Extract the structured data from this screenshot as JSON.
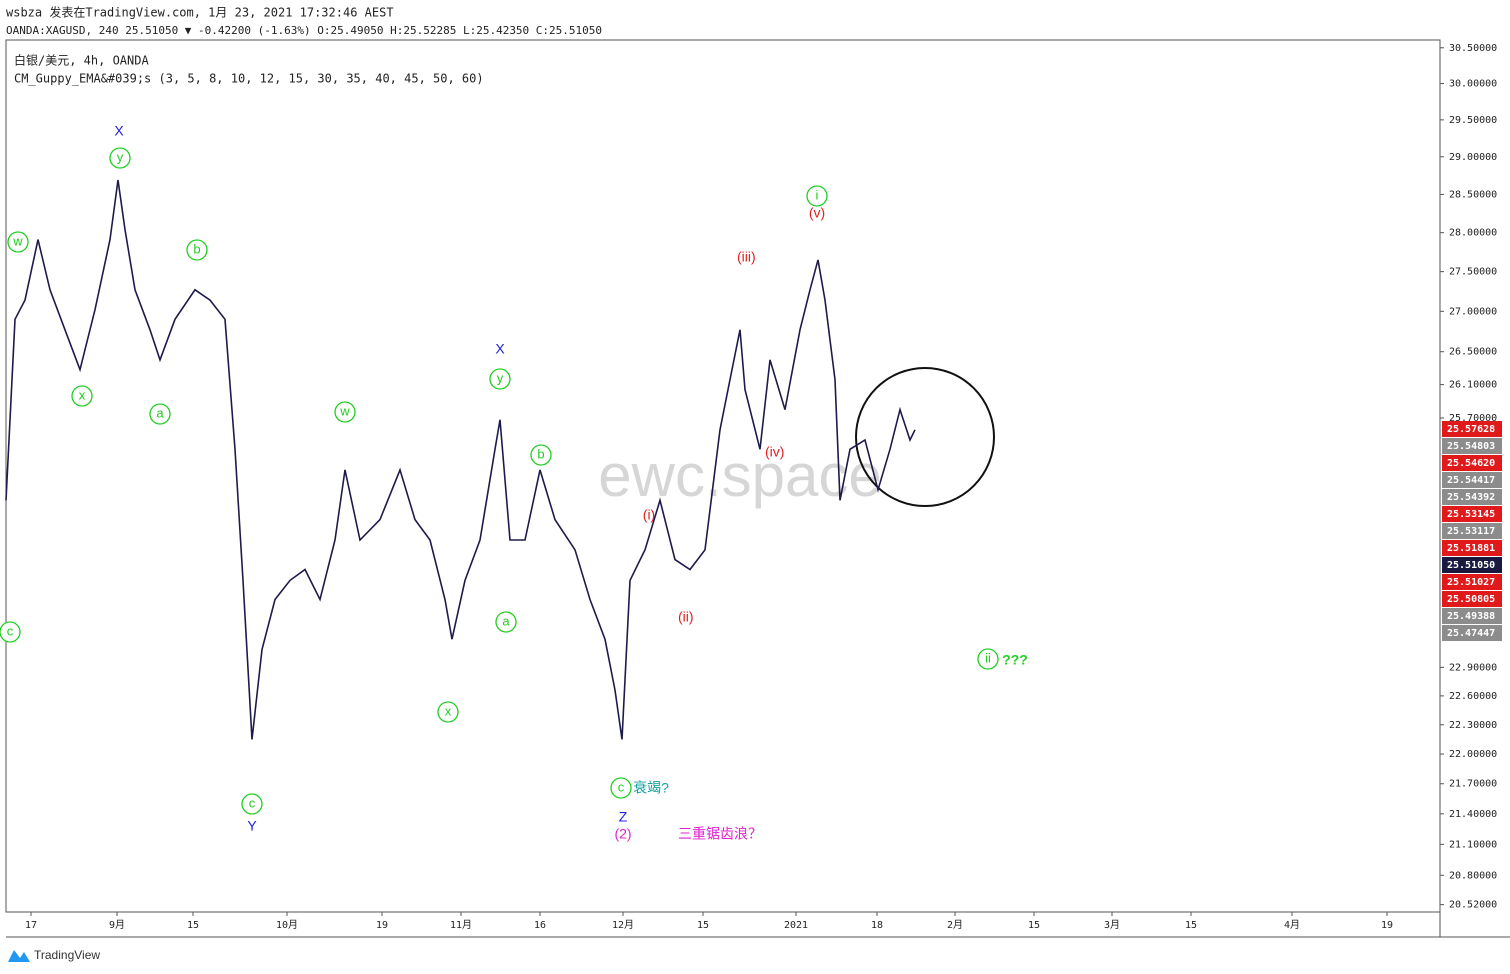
{
  "header": {
    "author_line": "wsbza 发表在TradingView.com, 1月 23, 2021 17:32:46 AEST",
    "symbol_line": "OANDA:XAGUSD, 240 25.51050 ▼ -0.42200 (-1.63%) O:25.49050 H:25.52285 L:25.42350 C:25.51050",
    "instrument": "白银/美元, 4h, OANDA",
    "indicator": "CM_Guppy_EMA&#039;s (3, 5, 8, 10, 12, 15, 30, 35, 40, 45, 50, 60)"
  },
  "watermark": "ewc.space",
  "footer": "TradingView",
  "chart_data": {
    "type": "line",
    "log_scale": true,
    "color": "#1e1b4b",
    "x": [
      0,
      9,
      19,
      32,
      44,
      59,
      74,
      89,
      104,
      112,
      119,
      129,
      144,
      154,
      169,
      189,
      204,
      219,
      229,
      237,
      246,
      256,
      269,
      284,
      299,
      314,
      329,
      339,
      354,
      374,
      394,
      409,
      424,
      439,
      446,
      459,
      474,
      489,
      494,
      504,
      519,
      534,
      549,
      569,
      584,
      599,
      609,
      616,
      624,
      639,
      654,
      669,
      684,
      699,
      714,
      724,
      734,
      739,
      754,
      764,
      779,
      794,
      804,
      812,
      819,
      829,
      834,
      844,
      859,
      872,
      884,
      894,
      904,
      909
    ],
    "values": [
      24.74,
      26.9,
      27.14,
      27.91,
      27.27,
      26.77,
      26.28,
      27.02,
      27.91,
      28.69,
      28.04,
      27.27,
      26.77,
      26.4,
      26.9,
      27.27,
      27.14,
      26.9,
      25.33,
      23.84,
      22.15,
      23.09,
      23.63,
      23.84,
      23.96,
      23.63,
      24.29,
      25.09,
      24.29,
      24.52,
      25.09,
      24.52,
      24.29,
      23.63,
      23.2,
      23.84,
      24.29,
      25.33,
      25.68,
      24.29,
      24.29,
      25.09,
      24.52,
      24.18,
      23.63,
      23.2,
      22.66,
      22.15,
      23.84,
      24.18,
      24.74,
      24.07,
      23.96,
      24.18,
      25.56,
      26.16,
      26.77,
      26.04,
      25.33,
      26.4,
      25.8,
      26.77,
      27.27,
      27.65,
      27.14,
      26.16,
      24.74,
      25.33,
      25.44,
      24.86,
      25.33,
      25.8,
      25.44,
      25.56
    ],
    "xlim": [
      0,
      1434
    ],
    "xticks": [
      {
        "value": 25,
        "label": "17"
      },
      {
        "value": 111,
        "label": "9月"
      },
      {
        "value": 187,
        "label": "15"
      },
      {
        "value": 281,
        "label": "10月"
      },
      {
        "value": 376,
        "label": "19"
      },
      {
        "value": 455,
        "label": "11月"
      },
      {
        "value": 534,
        "label": "16"
      },
      {
        "value": 617,
        "label": "12月"
      },
      {
        "value": 697,
        "label": "15"
      },
      {
        "value": 790,
        "label": "2021"
      },
      {
        "value": 871,
        "label": "18"
      },
      {
        "value": 949,
        "label": "2月"
      },
      {
        "value": 1028,
        "label": "15"
      },
      {
        "value": 1106,
        "label": "3月"
      },
      {
        "value": 1185,
        "label": "15"
      },
      {
        "value": 1286,
        "label": "4月"
      },
      {
        "value": 1381,
        "label": "19"
      }
    ],
    "ylim": [
      20.45,
      30.61
    ],
    "yticks": [
      {
        "value": 20.52,
        "label": "20.52000"
      },
      {
        "value": 20.8,
        "label": "20.80000"
      },
      {
        "value": 21.1,
        "label": "21.10000"
      },
      {
        "value": 21.4,
        "label": "21.40000"
      },
      {
        "value": 21.7,
        "label": "21.70000"
      },
      {
        "value": 22,
        "label": "22.00000"
      },
      {
        "value": 22.3,
        "label": "22.30000"
      },
      {
        "value": 22.6,
        "label": "22.60000"
      },
      {
        "value": 22.9,
        "label": "22.90000"
      },
      {
        "value": 25.7,
        "label": "25.70000"
      },
      {
        "value": 26.1,
        "label": "26.10000"
      },
      {
        "value": 26.5,
        "label": "26.50000"
      },
      {
        "value": 27,
        "label": "27.00000"
      },
      {
        "value": 27.5,
        "label": "27.50000"
      },
      {
        "value": 28,
        "label": "28.00000"
      },
      {
        "value": 28.5,
        "label": "28.50000"
      },
      {
        "value": 29,
        "label": "29.00000"
      },
      {
        "value": 29.5,
        "label": "29.50000"
      },
      {
        "value": 30,
        "label": "30.00000"
      },
      {
        "value": 30.5,
        "label": "30.50000"
      }
    ],
    "price_labels": [
      {
        "text": "25.57628",
        "color": "#e0191b"
      },
      {
        "text": "25.54803",
        "color": "#8c8c8c"
      },
      {
        "text": "25.54620",
        "color": "#e0191b"
      },
      {
        "text": "25.54417",
        "color": "#8c8c8c"
      },
      {
        "text": "25.54392",
        "color": "#8c8c8c"
      },
      {
        "text": "25.53145",
        "color": "#e0191b"
      },
      {
        "text": "25.53117",
        "color": "#8c8c8c"
      },
      {
        "text": "25.51881",
        "color": "#e0191b"
      },
      {
        "text": "25.51050",
        "color": "#1a1a40"
      },
      {
        "text": "25.51027",
        "color": "#e0191b"
      },
      {
        "text": "25.50805",
        "color": "#e0191b"
      },
      {
        "text": "25.49388",
        "color": "#8c8c8c"
      },
      {
        "text": "25.47447",
        "color": "#8c8c8c"
      }
    ],
    "annotations": [
      {
        "text": "w",
        "color": "#22cc22",
        "circle": true
      },
      {
        "text": "x",
        "color": "#22cc22",
        "circle": true
      },
      {
        "text": "y",
        "color": "#22cc22",
        "circle": true
      },
      {
        "text": "X",
        "color": "#2222dd",
        "circle": false
      },
      {
        "text": "a",
        "color": "#22cc22",
        "circle": true
      },
      {
        "text": "b",
        "color": "#22cc22",
        "circle": true
      },
      {
        "text": "c",
        "color": "#22cc22",
        "circle": true
      },
      {
        "text": "Y",
        "color": "#2222dd",
        "circle": false
      },
      {
        "text": "c",
        "color": "#22cc22",
        "circle": true
      },
      {
        "text": "w",
        "color": "#22cc22",
        "circle": true
      },
      {
        "text": "x",
        "color": "#22cc22",
        "circle": true
      },
      {
        "text": "y",
        "color": "#22cc22",
        "circle": true
      },
      {
        "text": "X",
        "color": "#2222dd",
        "circle": false
      },
      {
        "text": "a",
        "color": "#22cc22",
        "circle": true
      },
      {
        "text": "b",
        "color": "#22cc22",
        "circle": true
      },
      {
        "text": "c",
        "color": "#22cc22",
        "circle": true
      },
      {
        "text": "衰竭?",
        "color": "#14a0a0",
        "circle": false
      },
      {
        "text": "Z",
        "color": "#2222dd",
        "circle": false
      },
      {
        "text": "(2)",
        "color": "#dd22cc",
        "circle": false
      },
      {
        "text": "三重锯齿浪？",
        "color": "#dd22cc",
        "circle": false
      },
      {
        "text": "(i)",
        "color": "#e02020",
        "circle": false
      },
      {
        "text": "(ii)",
        "color": "#e02020",
        "circle": false
      },
      {
        "text": "(iii)",
        "color": "#e02020",
        "circle": false
      },
      {
        "text": "(iv)",
        "color": "#e02020",
        "circle": false
      },
      {
        "text": "(v)",
        "color": "#e02020",
        "circle": false
      },
      {
        "text": "i",
        "color": "#22cc22",
        "circle": true
      },
      {
        "text": "ii",
        "color": "#22cc22",
        "circle": true
      },
      {
        "text": "???",
        "color": "#22cc22",
        "circle": false
      }
    ]
  }
}
